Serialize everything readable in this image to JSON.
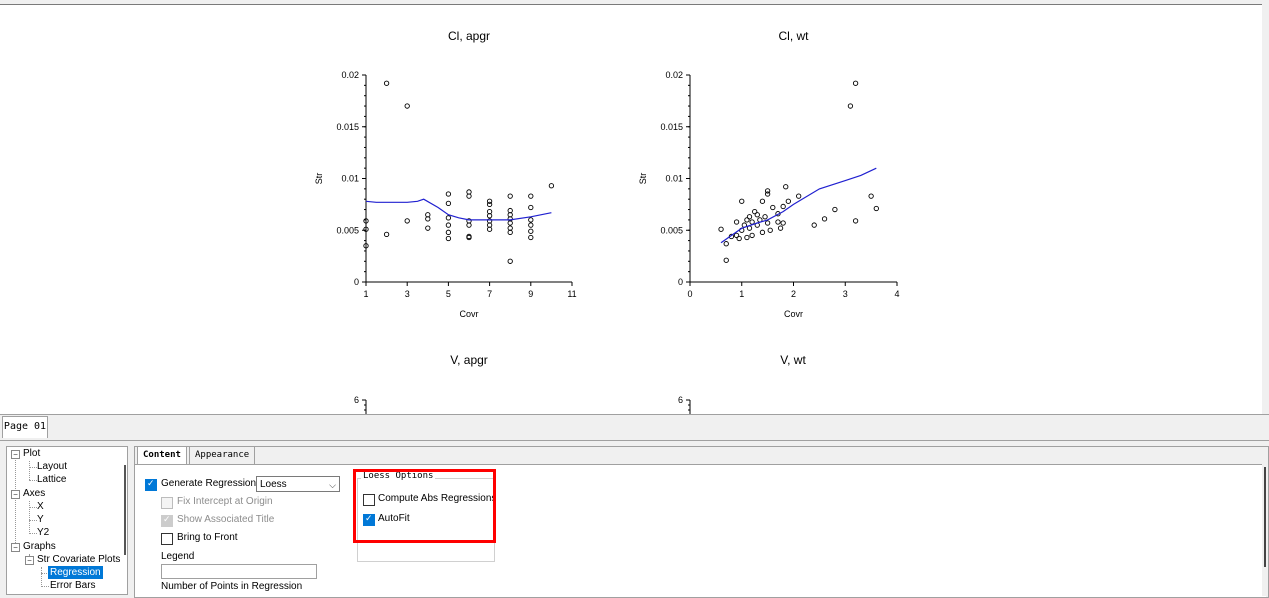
{
  "window": {
    "page_tab": "Page 01"
  },
  "charts": [
    {
      "title": "Cl, apgr",
      "xlabel": "Covr",
      "ylabel": "Str"
    },
    {
      "title": "Cl, wt",
      "xlabel": "Covr",
      "ylabel": "Str"
    },
    {
      "title": "V, apgr"
    },
    {
      "title": "V, wt"
    }
  ],
  "chart_data": [
    {
      "type": "scatter",
      "title": "Cl, apgr",
      "xlabel": "Covr",
      "ylabel": "Str",
      "xlim": [
        1,
        11
      ],
      "ylim": [
        0,
        0.02
      ],
      "xticks": [
        "1",
        "3",
        "5",
        "7",
        "9",
        "11"
      ],
      "yticks": [
        "0",
        "0.005",
        "0.01",
        "0.015",
        "0.02"
      ],
      "points": [
        [
          1,
          0.0035
        ],
        [
          1,
          0.0051
        ],
        [
          1,
          0.0059
        ],
        [
          2,
          0.0192
        ],
        [
          2,
          0.0046
        ],
        [
          3,
          0.017
        ],
        [
          3,
          0.0059
        ],
        [
          4,
          0.0061
        ],
        [
          4,
          0.0052
        ],
        [
          4,
          0.0065
        ],
        [
          5,
          0.0085
        ],
        [
          5,
          0.0076
        ],
        [
          5,
          0.0062
        ],
        [
          5,
          0.0055
        ],
        [
          5,
          0.0048
        ],
        [
          5,
          0.0042
        ],
        [
          6,
          0.0087
        ],
        [
          6,
          0.0083
        ],
        [
          6,
          0.0059
        ],
        [
          6,
          0.0055
        ],
        [
          6,
          0.0044
        ],
        [
          6,
          0.0043
        ],
        [
          7,
          0.0078
        ],
        [
          7,
          0.0075
        ],
        [
          7,
          0.0068
        ],
        [
          7,
          0.0064
        ],
        [
          7,
          0.0059
        ],
        [
          7,
          0.0055
        ],
        [
          7,
          0.0051
        ],
        [
          8,
          0.0083
        ],
        [
          8,
          0.0069
        ],
        [
          8,
          0.0065
        ],
        [
          8,
          0.0061
        ],
        [
          8,
          0.0057
        ],
        [
          8,
          0.0052
        ],
        [
          8,
          0.0048
        ],
        [
          8,
          0.002
        ],
        [
          9,
          0.0083
        ],
        [
          9,
          0.0072
        ],
        [
          9,
          0.006
        ],
        [
          9,
          0.0055
        ],
        [
          9,
          0.0049
        ],
        [
          9,
          0.0043
        ],
        [
          10,
          0.0093
        ]
      ],
      "line": [
        [
          1,
          0.0078
        ],
        [
          1.5,
          0.0077
        ],
        [
          2,
          0.0077
        ],
        [
          3,
          0.0077
        ],
        [
          3.5,
          0.0078
        ],
        [
          3.8,
          0.008
        ],
        [
          4.5,
          0.0072
        ],
        [
          5,
          0.0065
        ],
        [
          5.5,
          0.0062
        ],
        [
          6,
          0.006
        ],
        [
          7,
          0.006
        ],
        [
          8,
          0.006
        ],
        [
          9,
          0.0063
        ],
        [
          10,
          0.0067
        ]
      ],
      "line_color": "#2020d0"
    },
    {
      "type": "scatter",
      "title": "Cl, wt",
      "xlabel": "Covr",
      "ylabel": "Str",
      "xlim": [
        0,
        4
      ],
      "ylim": [
        0,
        0.02
      ],
      "xticks": [
        "0",
        "1",
        "2",
        "3",
        "4"
      ],
      "yticks": [
        "0",
        "0.005",
        "0.01",
        "0.015",
        "0.02"
      ],
      "points": [
        [
          0.6,
          0.0051
        ],
        [
          0.7,
          0.0037
        ],
        [
          0.7,
          0.0021
        ],
        [
          0.8,
          0.0044
        ],
        [
          0.9,
          0.0058
        ],
        [
          0.9,
          0.0045
        ],
        [
          0.95,
          0.0042
        ],
        [
          1.0,
          0.0078
        ],
        [
          1.0,
          0.005
        ],
        [
          1.05,
          0.0055
        ],
        [
          1.1,
          0.006
        ],
        [
          1.1,
          0.0043
        ],
        [
          1.15,
          0.0052
        ],
        [
          1.15,
          0.0063
        ],
        [
          1.2,
          0.0045
        ],
        [
          1.2,
          0.0058
        ],
        [
          1.25,
          0.0068
        ],
        [
          1.3,
          0.0055
        ],
        [
          1.3,
          0.0065
        ],
        [
          1.35,
          0.006
        ],
        [
          1.4,
          0.0078
        ],
        [
          1.4,
          0.0048
        ],
        [
          1.45,
          0.0063
        ],
        [
          1.5,
          0.0088
        ],
        [
          1.5,
          0.0085
        ],
        [
          1.5,
          0.0057
        ],
        [
          1.55,
          0.005
        ],
        [
          1.6,
          0.0072
        ],
        [
          1.7,
          0.0058
        ],
        [
          1.7,
          0.0066
        ],
        [
          1.75,
          0.0052
        ],
        [
          1.8,
          0.0073
        ],
        [
          1.8,
          0.0057
        ],
        [
          1.85,
          0.0092
        ],
        [
          1.9,
          0.0078
        ],
        [
          2.1,
          0.0083
        ],
        [
          2.4,
          0.0055
        ],
        [
          2.6,
          0.0061
        ],
        [
          2.8,
          0.007
        ],
        [
          3.1,
          0.017
        ],
        [
          3.2,
          0.0192
        ],
        [
          3.2,
          0.0059
        ],
        [
          3.5,
          0.0083
        ],
        [
          3.6,
          0.0071
        ]
      ],
      "line": [
        [
          0.6,
          0.0038
        ],
        [
          1.0,
          0.0052
        ],
        [
          1.3,
          0.0057
        ],
        [
          1.5,
          0.006
        ],
        [
          1.8,
          0.0068
        ],
        [
          2.0,
          0.0075
        ],
        [
          2.5,
          0.009
        ],
        [
          3.0,
          0.0098
        ],
        [
          3.3,
          0.0103
        ],
        [
          3.6,
          0.011
        ]
      ],
      "line_color": "#2020d0"
    },
    {
      "type": "scatter",
      "title": "V, apgr",
      "yticks_visible": [
        "6"
      ]
    },
    {
      "type": "scatter",
      "title": "V, wt",
      "yticks_visible": [
        "6"
      ]
    }
  ],
  "tree": {
    "items": [
      {
        "label": "Plot",
        "expander": "−"
      },
      {
        "label": "Layout"
      },
      {
        "label": "Lattice"
      },
      {
        "label": "Axes",
        "expander": "−"
      },
      {
        "label": "X"
      },
      {
        "label": "Y"
      },
      {
        "label": "Y2"
      },
      {
        "label": "Graphs",
        "expander": "−"
      },
      {
        "label": "Str Covariate Plots",
        "expander": "−"
      },
      {
        "label": "Regression",
        "selected": true
      },
      {
        "label": "Error Bars"
      }
    ]
  },
  "props": {
    "tabs": [
      "Content",
      "Appearance"
    ],
    "generate_regression": {
      "label": "Generate Regression",
      "checked": true
    },
    "regression_type": "Loess",
    "fix_intercept": {
      "label": "Fix Intercept at Origin",
      "checked": false,
      "disabled": true
    },
    "show_title": {
      "label": "Show Associated Title",
      "checked": true,
      "disabled": true
    },
    "bring_front": {
      "label": "Bring to Front",
      "checked": false
    },
    "legend_label": "Legend",
    "legend_value": "",
    "npoints_label": "Number of Points in Regression",
    "loess": {
      "title": "Loess Options",
      "compute_abs": {
        "label": "Compute Abs Regressions",
        "checked": false
      },
      "autofit": {
        "label": "AutoFit",
        "checked": true
      }
    }
  },
  "colors": {
    "highlight": "#ff0000",
    "accent": "#0078d7",
    "fit_line": "#2020d0"
  }
}
